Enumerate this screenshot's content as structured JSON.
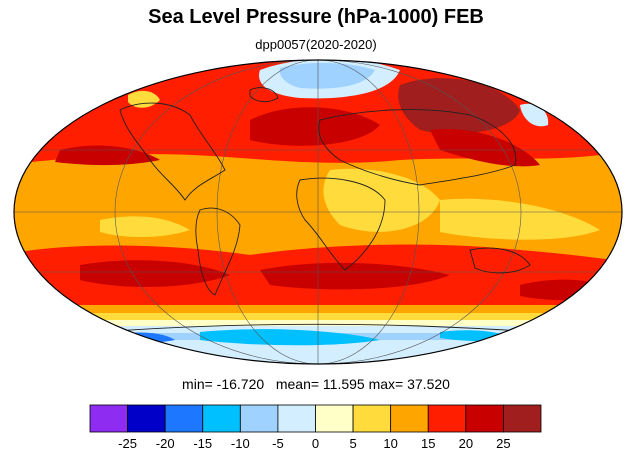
{
  "header": {
    "title": "Sea Level Pressure (hPa-1000) FEB",
    "subtitle": "dpp0057(2020-2020)"
  },
  "stats": {
    "min_label": "min=",
    "min": "-16.720",
    "mean_label": "mean=",
    "mean": "11.595",
    "max_label": "max=",
    "max": "37.520"
  },
  "colorbar": {
    "colors": [
      "#8f2cf2",
      "#0000c8",
      "#1e78ff",
      "#00c0ff",
      "#a0d2ff",
      "#d2eeff",
      "#ffffc8",
      "#ffdc3c",
      "#ffa500",
      "#ff1e00",
      "#c80000",
      "#a01e1e"
    ],
    "tick_labels": [
      "-25",
      "-20",
      "-15",
      "-10",
      "-5",
      "0",
      "5",
      "10",
      "15",
      "20",
      "25"
    ]
  },
  "map": {
    "projection": "mollweide"
  }
}
